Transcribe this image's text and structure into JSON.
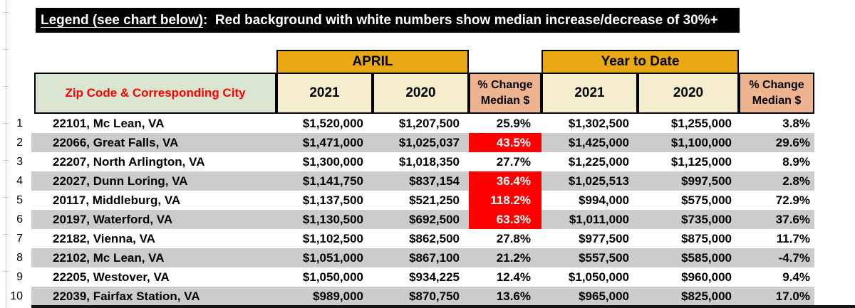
{
  "legend": {
    "underlined_part": "Legend (see chart below)",
    "rest": ":  Red background with white numbers show median increase/decrease of 30%+"
  },
  "table": {
    "zip_header": "Zip Code & Corresponding City",
    "group_april": "APRIL",
    "group_ytd": "Year to Date",
    "april_2021": "2021",
    "april_2020": "2020",
    "ytd_2021": "2021",
    "ytd_2020": "2020",
    "pct_change_line1": "% Change",
    "pct_change_line2": "Median $"
  },
  "colors": {
    "gold_band": "#e9a914",
    "cream_header": "#f5edcb",
    "salmon_header": "#edb48f",
    "green_header": "#dbe6d2",
    "header_text_red": "#fe0000",
    "highlight_red": "#fe0000",
    "stripe_gray": "#cbcdcc",
    "legend_bg": "#000000"
  },
  "rows": [
    {
      "num": "1",
      "zip": "22101, Mc Lean, VA",
      "apr_2021": "$1,520,000",
      "apr_2020": "$1,207,500",
      "apr_pct": "25.9%",
      "apr_red": false,
      "ytd_2021": "$1,302,500",
      "ytd_2020": "$1,255,000",
      "ytd_pct": "3.8%"
    },
    {
      "num": "2",
      "zip": "22066, Great Falls, VA",
      "apr_2021": "$1,471,000",
      "apr_2020": "$1,025,037",
      "apr_pct": "43.5%",
      "apr_red": true,
      "ytd_2021": "$1,425,000",
      "ytd_2020": "$1,100,000",
      "ytd_pct": "29.6%"
    },
    {
      "num": "3",
      "zip": "22207, North Arlington, VA",
      "apr_2021": "$1,300,000",
      "apr_2020": "$1,018,350",
      "apr_pct": "27.7%",
      "apr_red": false,
      "ytd_2021": "$1,225,000",
      "ytd_2020": "$1,125,000",
      "ytd_pct": "8.9%"
    },
    {
      "num": "4",
      "zip": "22027, Dunn Loring, VA",
      "apr_2021": "$1,141,750",
      "apr_2020": "$837,154",
      "apr_pct": "36.4%",
      "apr_red": true,
      "ytd_2021": "$1,025,513",
      "ytd_2020": "$997,500",
      "ytd_pct": "2.8%"
    },
    {
      "num": "5",
      "zip": "20117, Middleburg, VA",
      "apr_2021": "$1,137,500",
      "apr_2020": "$521,250",
      "apr_pct": "118.2%",
      "apr_red": true,
      "ytd_2021": "$994,000",
      "ytd_2020": "$575,000",
      "ytd_pct": "72.9%"
    },
    {
      "num": "6",
      "zip": "20197, Waterford, VA",
      "apr_2021": "$1,130,500",
      "apr_2020": "$692,500",
      "apr_pct": "63.3%",
      "apr_red": true,
      "ytd_2021": "$1,011,000",
      "ytd_2020": "$735,000",
      "ytd_pct": "37.6%"
    },
    {
      "num": "7",
      "zip": "22182, Vienna, VA",
      "apr_2021": "$1,102,500",
      "apr_2020": "$862,500",
      "apr_pct": "27.8%",
      "apr_red": false,
      "ytd_2021": "$977,500",
      "ytd_2020": "$875,000",
      "ytd_pct": "11.7%"
    },
    {
      "num": "8",
      "zip": "22102, Mc Lean, VA",
      "apr_2021": "$1,051,000",
      "apr_2020": "$867,100",
      "apr_pct": "21.2%",
      "apr_red": false,
      "ytd_2021": "$557,500",
      "ytd_2020": "$585,000",
      "ytd_pct": "-4.7%"
    },
    {
      "num": "9",
      "zip": "22205, Westover, VA",
      "apr_2021": "$1,050,000",
      "apr_2020": "$934,225",
      "apr_pct": "12.4%",
      "apr_red": false,
      "ytd_2021": "$1,050,000",
      "ytd_2020": "$960,000",
      "ytd_pct": "9.4%"
    },
    {
      "num": "10",
      "zip": "22039, Fairfax Station, VA",
      "apr_2021": "$989,000",
      "apr_2020": "$870,750",
      "apr_pct": "13.6%",
      "apr_red": false,
      "ytd_2021": "$965,000",
      "ytd_2020": "$825,000",
      "ytd_pct": "17.0%"
    }
  ]
}
